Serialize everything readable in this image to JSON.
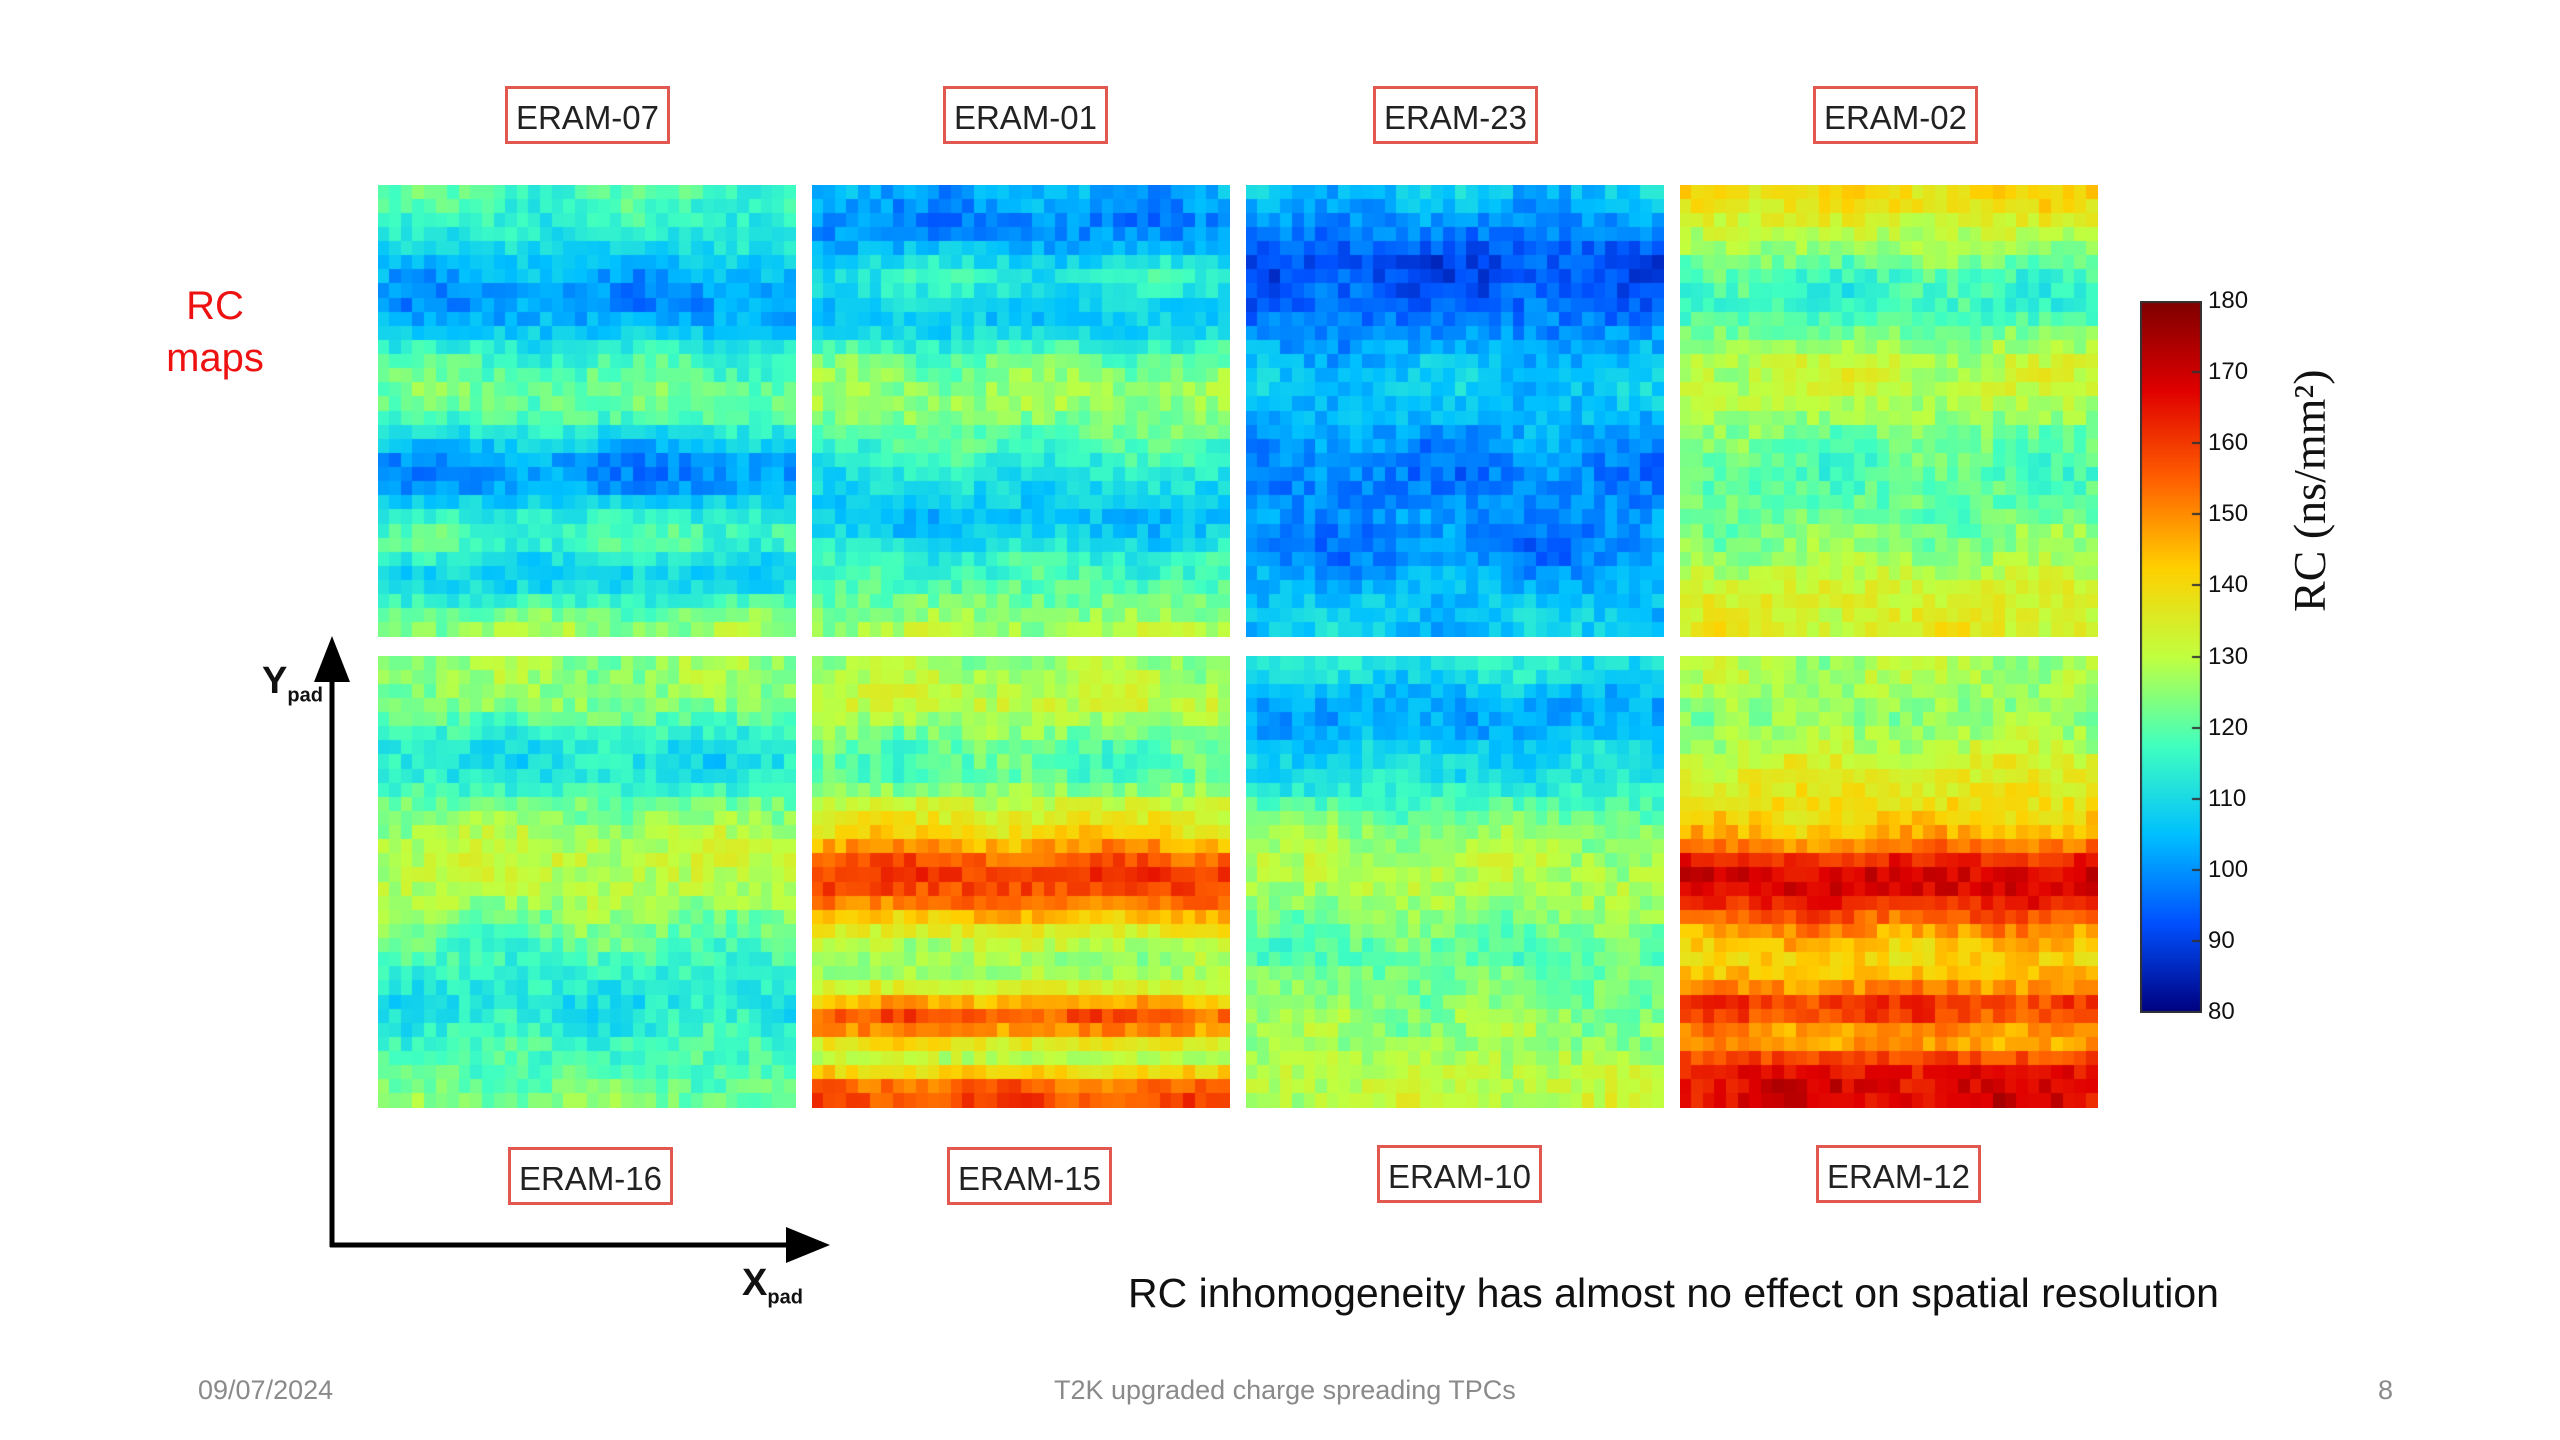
{
  "side_title_line1": "RC",
  "side_title_line2": "maps",
  "axes": {
    "y_main": "Y",
    "y_sub": "pad",
    "x_main": "X",
    "x_sub": "pad"
  },
  "conclusion": "RC inhomogeneity has almost no effect on spatial resolution",
  "footer": {
    "date": "09/07/2024",
    "title": "T2K upgraded charge spreading TPCs",
    "page": "8"
  },
  "chart_data": {
    "type": "heatmap",
    "title": "",
    "panels_top": [
      "ERAM-07",
      "ERAM-01",
      "ERAM-23",
      "ERAM-02"
    ],
    "panels_bottom": [
      "ERAM-16",
      "ERAM-15",
      "ERAM-10",
      "ERAM-12"
    ],
    "xlabel": "X_pad",
    "ylabel": "Y_pad",
    "colorbar": {
      "label": "RC (ns/mm²)",
      "min": 80,
      "max": 180,
      "ticks": [
        "180",
        "170",
        "160",
        "150",
        "140",
        "130",
        "120",
        "110",
        "100",
        "90",
        "80"
      ],
      "colors": [
        "#00007f",
        "#0050ff",
        "#00c0ff",
        "#40ffc0",
        "#c0ff40",
        "#ffd000",
        "#ff6000",
        "#e00000",
        "#7f0000"
      ]
    },
    "rows": 32,
    "cols": 36,
    "approx_mean_rc": [
      {
        "name": "ERAM-07",
        "row_profile": [
          118,
          117,
          115,
          113,
          110,
          106,
          103,
          101,
          100,
          103,
          108,
          113,
          117,
          120,
          122,
          121,
          118,
          112,
          106,
          101,
          100,
          102,
          108,
          114,
          118,
          117,
          112,
          108,
          110,
          116,
          122,
          126
        ]
      },
      {
        "name": "ERAM-01",
        "row_profile": [
          103,
          101,
          99,
          100,
          104,
          110,
          114,
          112,
          108,
          107,
          110,
          116,
          121,
          124,
          126,
          126,
          124,
          121,
          118,
          115,
          113,
          110,
          108,
          106,
          107,
          111,
          115,
          117,
          119,
          122,
          125,
          128
        ]
      },
      {
        "name": "ERAM-23",
        "row_profile": [
          106,
          103,
          100,
          97,
          94,
          92,
          92,
          93,
          95,
          97,
          100,
          102,
          104,
          106,
          107,
          106,
          104,
          102,
          100,
          99,
          98,
          98,
          99,
          100,
          99,
          98,
          99,
          102,
          104,
          106,
          107,
          107
        ]
      },
      {
        "name": "ERAM-02",
        "row_profile": [
          140,
          138,
          134,
          130,
          126,
          122,
          118,
          116,
          116,
          119,
          123,
          127,
          130,
          131,
          131,
          129,
          126,
          123,
          121,
          120,
          119,
          120,
          121,
          122,
          124,
          125,
          127,
          130,
          133,
          134,
          134,
          135
        ]
      },
      {
        "name": "ERAM-16",
        "row_profile": [
          126,
          126,
          125,
          124,
          120,
          116,
          112,
          111,
          113,
          117,
          122,
          125,
          128,
          130,
          131,
          130,
          129,
          127,
          124,
          122,
          119,
          117,
          115,
          113,
          112,
          113,
          115,
          117,
          118,
          120,
          121,
          123
        ]
      },
      {
        "name": "ERAM-15",
        "row_profile": [
          126,
          128,
          130,
          131,
          128,
          124,
          121,
          119,
          120,
          125,
          131,
          136,
          140,
          148,
          156,
          160,
          158,
          152,
          144,
          136,
          130,
          127,
          128,
          134,
          146,
          156,
          150,
          138,
          130,
          141,
          154,
          158
        ]
      },
      {
        "name": "ERAM-10",
        "row_profile": [
          112,
          110,
          106,
          103,
          102,
          104,
          108,
          110,
          111,
          114,
          118,
          122,
          125,
          127,
          128,
          128,
          128,
          126,
          124,
          122,
          120,
          120,
          122,
          123,
          124,
          126,
          126,
          126,
          128,
          130,
          130,
          130
        ]
      },
      {
        "name": "ERAM-12",
        "row_profile": [
          128,
          128,
          127,
          126,
          125,
          127,
          130,
          133,
          135,
          137,
          139,
          141,
          145,
          152,
          162,
          168,
          168,
          163,
          156,
          149,
          144,
          141,
          144,
          150,
          160,
          158,
          150,
          148,
          158,
          166,
          168,
          168
        ]
      }
    ]
  }
}
